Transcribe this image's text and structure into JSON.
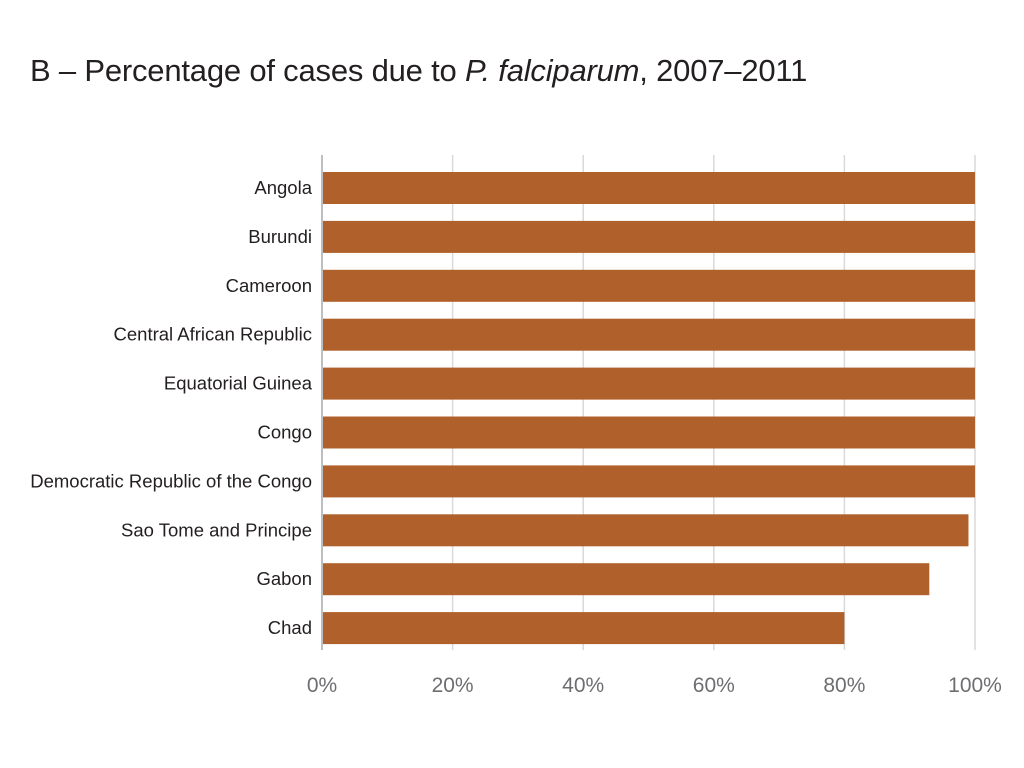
{
  "title": {
    "prefix": "B – Percentage of cases due to ",
    "italic": "P. falciparum",
    "suffix": ", 2007–2011"
  },
  "colors": {
    "bar": "#b0602a",
    "text": "#231f20",
    "tick_text": "#6d6e71",
    "grid": "#d9d9d9"
  },
  "chart_data": {
    "type": "bar",
    "orientation": "horizontal",
    "title": "B – Percentage of cases due to P. falciparum, 2007–2011",
    "xlabel": "",
    "ylabel": "",
    "xlim": [
      0,
      100
    ],
    "x_unit": "%",
    "grid": true,
    "legend": "none",
    "categories": [
      "Angola",
      "Burundi",
      "Cameroon",
      "Central African Republic",
      "Equatorial Guinea",
      "Congo",
      "Democratic Republic of the Congo",
      "Sao Tome and Principe",
      "Gabon",
      "Chad"
    ],
    "values": [
      100,
      100,
      100,
      100,
      100,
      100,
      100,
      99,
      93,
      80
    ],
    "x_ticks": [
      "0%",
      "20%",
      "40%",
      "60%",
      "80%",
      "100%"
    ]
  }
}
